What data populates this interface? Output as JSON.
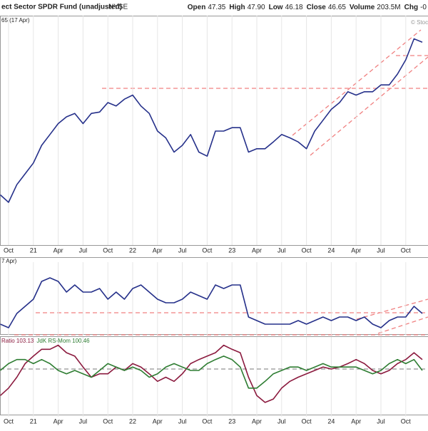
{
  "header": {
    "title": "ect Sector SPDR Fund (unadjusted)",
    "exchange": "NYSE",
    "stats": [
      {
        "label": "Open",
        "value": "47.35"
      },
      {
        "label": "High",
        "value": "47.90"
      },
      {
        "label": "Low",
        "value": "46.18"
      },
      {
        "label": "Close",
        "value": "46.65"
      },
      {
        "label": "Volume",
        "value": "203.5M"
      },
      {
        "label": "Chg",
        "value": "-0"
      }
    ],
    "watermark": "© Stoc"
  },
  "chart_data": [
    {
      "type": "line",
      "title": "65 (17 Apr)",
      "categories": [
        null,
        "Oct",
        null,
        null,
        "21",
        null,
        null,
        "Apr",
        null,
        null,
        "Jul",
        null,
        null,
        "Oct",
        null,
        null,
        "22",
        null,
        null,
        "Apr",
        null,
        null,
        "Jul",
        null,
        null,
        "Oct",
        null,
        null,
        "23",
        null,
        null,
        "Apr",
        null,
        null,
        "Jul",
        null,
        null,
        "Oct",
        null,
        null,
        "24",
        null,
        null,
        "Apr",
        null,
        null,
        "Jul",
        null,
        null,
        "Oct",
        null,
        null
      ],
      "ylim": [
        18.2,
        51.8
      ],
      "series": [
        {
          "color": "#25308a",
          "values": [
            25.6,
            24.5,
            27.1,
            28.7,
            30.3,
            32.9,
            34.5,
            36.1,
            37.1,
            37.6,
            36.1,
            37.6,
            37.8,
            39.2,
            38.7,
            39.7,
            40.3,
            38.7,
            37.6,
            35.0,
            34.0,
            31.9,
            32.9,
            34.5,
            31.9,
            31.3,
            35.0,
            35.0,
            35.5,
            35.5,
            31.9,
            32.4,
            32.4,
            33.4,
            34.5,
            34.0,
            33.4,
            32.4,
            35.0,
            36.6,
            38.2,
            39.2,
            40.8,
            40.3,
            40.8,
            40.8,
            41.8,
            41.8,
            43.4,
            45.5,
            48.6,
            48.1
          ]
        }
      ]
    },
    {
      "type": "line",
      "title": "7 Apr)",
      "ylim": [
        0,
        100
      ],
      "series": [
        {
          "color": "#25308a",
          "values": [
            15,
            10,
            30,
            40,
            50,
            75,
            80,
            75,
            60,
            70,
            60,
            60,
            65,
            50,
            60,
            50,
            65,
            70,
            60,
            50,
            45,
            45,
            50,
            60,
            55,
            50,
            70,
            65,
            70,
            70,
            25,
            20,
            15,
            15,
            15,
            15,
            20,
            15,
            20,
            25,
            20,
            25,
            25,
            20,
            25,
            15,
            10,
            20,
            25,
            25,
            40,
            30
          ]
        }
      ]
    },
    {
      "type": "line",
      "categories": [
        null,
        "Oct",
        null,
        null,
        "21",
        null,
        null,
        "Apr",
        null,
        null,
        "Jul",
        null,
        null,
        "Oct",
        null,
        null,
        "22",
        null,
        null,
        "Apr",
        null,
        null,
        "Jul",
        null,
        null,
        "Oct",
        null,
        null,
        "23",
        null,
        null,
        "Apr",
        null,
        null,
        "Jul",
        null,
        null,
        "Oct",
        null,
        null,
        "24",
        null,
        null,
        "Apr",
        null,
        null,
        "Jul",
        null,
        null,
        "Oct",
        null,
        null
      ],
      "ylim": [
        93,
        104.5
      ],
      "reference_line": 100,
      "series": [
        {
          "name": "Ratio 103.13",
          "color": "#8b1a3e",
          "values": [
            96.1,
            97.2,
            98.8,
            100.8,
            101.9,
            102.9,
            102.9,
            103.5,
            102.4,
            101.9,
            100.3,
            98.8,
            99.3,
            99.3,
            100.3,
            99.8,
            100.8,
            100.3,
            99.3,
            98.2,
            98.8,
            98.2,
            99.3,
            100.8,
            101.4,
            101.9,
            102.4,
            103.5,
            102.9,
            102.4,
            98.8,
            96.1,
            95.1,
            95.6,
            97.2,
            98.2,
            98.8,
            99.3,
            99.8,
            100.3,
            100.0,
            100.3,
            100.8,
            101.4,
            100.8,
            99.8,
            99.3,
            99.8,
            100.8,
            101.4,
            102.4,
            101.4
          ]
        },
        {
          "name": "JdK RS-Mom 100.46",
          "color": "#2e7d32",
          "values": [
            99.8,
            100.8,
            101.4,
            101.4,
            100.8,
            101.4,
            100.8,
            99.8,
            99.3,
            99.8,
            99.3,
            98.8,
            99.8,
            100.8,
            100.3,
            99.8,
            100.3,
            99.8,
            98.8,
            99.3,
            100.3,
            100.8,
            100.3,
            99.8,
            99.8,
            100.8,
            101.4,
            101.9,
            101.4,
            100.3,
            97.2,
            97.2,
            98.2,
            99.3,
            99.8,
            100.3,
            100.3,
            99.8,
            100.3,
            100.8,
            100.3,
            100.3,
            100.3,
            100.3,
            99.8,
            99.3,
            99.8,
            100.8,
            101.4,
            100.8,
            101.4,
            99.8
          ]
        }
      ]
    }
  ]
}
